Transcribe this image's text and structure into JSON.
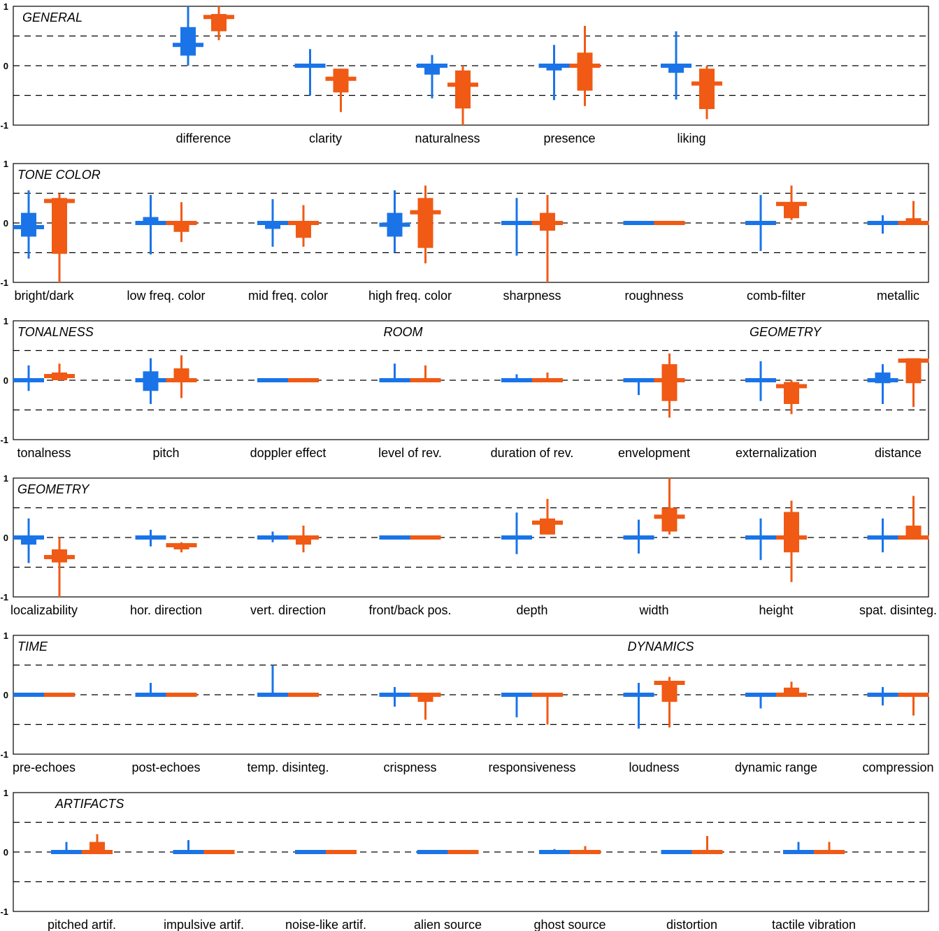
{
  "colors": {
    "series_a": "#1a74e8",
    "series_b": "#f05a14"
  },
  "chart_data": {
    "type": "box",
    "ylim": [
      -1,
      1
    ],
    "yticks": [
      -1,
      0,
      1
    ],
    "grid_dashed_at": [
      -0.5,
      0,
      0.5
    ],
    "panels": [
      {
        "groups": [
          {
            "label": "GENERAL",
            "start": 0
          }
        ],
        "categories": [
          {
            "label": "difference",
            "a": {
              "med": 0.35,
              "q1": 0.17,
              "q3": 0.65,
              "lo": 0.0,
              "hi": 1.0
            },
            "b": {
              "med": 0.82,
              "q1": 0.58,
              "q3": 0.87,
              "lo": 0.43,
              "hi": 1.0
            }
          },
          {
            "label": "clarity",
            "a": {
              "med": 0.0,
              "q1": 0.0,
              "q3": 0.0,
              "lo": -0.5,
              "hi": 0.28
            },
            "b": {
              "med": -0.22,
              "q1": -0.45,
              "q3": -0.05,
              "lo": -0.78,
              "hi": -0.05
            }
          },
          {
            "label": "naturalness",
            "a": {
              "med": 0.0,
              "q1": -0.15,
              "q3": 0.0,
              "lo": -0.55,
              "hi": 0.18
            },
            "b": {
              "med": -0.32,
              "q1": -0.72,
              "q3": -0.08,
              "lo": -1.0,
              "hi": 0.0
            }
          },
          {
            "label": "presence",
            "a": {
              "med": 0.0,
              "q1": -0.08,
              "q3": 0.0,
              "lo": -0.58,
              "hi": 0.35
            },
            "b": {
              "med": 0.0,
              "q1": -0.42,
              "q3": 0.22,
              "lo": -0.68,
              "hi": 0.67
            }
          },
          {
            "label": "liking",
            "a": {
              "med": 0.0,
              "q1": -0.12,
              "q3": 0.0,
              "lo": -0.57,
              "hi": 0.58
            },
            "b": {
              "med": -0.3,
              "q1": -0.73,
              "q3": -0.05,
              "lo": -0.9,
              "hi": 0.0
            }
          }
        ]
      },
      {
        "groups": [
          {
            "label": "TONE COLOR",
            "start": 0
          }
        ],
        "categories": [
          {
            "label": "bright/dark",
            "a": {
              "med": -0.07,
              "q1": -0.23,
              "q3": 0.17,
              "lo": -0.6,
              "hi": 0.55
            },
            "b": {
              "med": 0.37,
              "q1": -0.52,
              "q3": 0.42,
              "lo": -1.0,
              "hi": 0.5
            }
          },
          {
            "label": "low freq. color",
            "a": {
              "med": 0.0,
              "q1": 0.0,
              "q3": 0.1,
              "lo": -0.53,
              "hi": 0.47
            },
            "b": {
              "med": 0.0,
              "q1": -0.15,
              "q3": 0.0,
              "lo": -0.32,
              "hi": 0.35
            }
          },
          {
            "label": "mid freq. color",
            "a": {
              "med": 0.0,
              "q1": -0.1,
              "q3": 0.0,
              "lo": -0.4,
              "hi": 0.4
            },
            "b": {
              "med": 0.0,
              "q1": -0.25,
              "q3": 0.0,
              "lo": -0.4,
              "hi": 0.3
            }
          },
          {
            "label": "high freq. color",
            "a": {
              "med": -0.03,
              "q1": -0.23,
              "q3": 0.17,
              "lo": -0.5,
              "hi": 0.55
            },
            "b": {
              "med": 0.18,
              "q1": -0.42,
              "q3": 0.42,
              "lo": -0.68,
              "hi": 0.63
            }
          },
          {
            "label": "sharpness",
            "a": {
              "med": 0.0,
              "q1": 0.0,
              "q3": 0.0,
              "lo": -0.55,
              "hi": 0.42
            },
            "b": {
              "med": 0.0,
              "q1": -0.13,
              "q3": 0.17,
              "lo": -1.0,
              "hi": 0.47
            }
          },
          {
            "label": "roughness",
            "a": {
              "med": 0.0,
              "q1": 0.0,
              "q3": 0.0,
              "lo": 0.0,
              "hi": 0.0
            },
            "b": {
              "med": 0.0,
              "q1": 0.0,
              "q3": 0.0,
              "lo": 0.0,
              "hi": 0.0
            }
          },
          {
            "label": "comb-filter",
            "a": {
              "med": 0.0,
              "q1": 0.0,
              "q3": 0.0,
              "lo": -0.47,
              "hi": 0.47
            },
            "b": {
              "med": 0.32,
              "q1": 0.08,
              "q3": 0.35,
              "lo": 0.05,
              "hi": 0.63
            }
          },
          {
            "label": "metallic",
            "a": {
              "med": 0.0,
              "q1": 0.0,
              "q3": 0.0,
              "lo": -0.18,
              "hi": 0.13
            },
            "b": {
              "med": 0.0,
              "q1": 0.0,
              "q3": 0.08,
              "lo": 0.0,
              "hi": 0.37
            }
          }
        ]
      },
      {
        "groups": [
          {
            "label": "TONALNESS",
            "start": 0
          },
          {
            "label": "ROOM",
            "start": 3
          },
          {
            "label": "GEOMETRY",
            "start": 6
          }
        ],
        "categories": [
          {
            "label": "tonalness",
            "a": {
              "med": 0.0,
              "q1": 0.0,
              "q3": 0.0,
              "lo": -0.18,
              "hi": 0.25
            },
            "b": {
              "med": 0.07,
              "q1": 0.0,
              "q3": 0.13,
              "lo": 0.0,
              "hi": 0.28
            }
          },
          {
            "label": "pitch",
            "a": {
              "med": 0.0,
              "q1": -0.18,
              "q3": 0.15,
              "lo": -0.4,
              "hi": 0.37
            },
            "b": {
              "med": 0.0,
              "q1": 0.0,
              "q3": 0.2,
              "lo": -0.3,
              "hi": 0.42
            }
          },
          {
            "label": "doppler effect",
            "a": {
              "med": 0.0,
              "q1": 0.0,
              "q3": 0.0,
              "lo": 0.0,
              "hi": 0.0
            },
            "b": {
              "med": 0.0,
              "q1": 0.0,
              "q3": 0.0,
              "lo": 0.0,
              "hi": 0.0
            }
          },
          {
            "label": "level of rev.",
            "a": {
              "med": 0.0,
              "q1": 0.0,
              "q3": 0.0,
              "lo": 0.0,
              "hi": 0.28
            },
            "b": {
              "med": 0.0,
              "q1": 0.0,
              "q3": 0.0,
              "lo": 0.0,
              "hi": 0.25
            }
          },
          {
            "label": "duration of rev.",
            "a": {
              "med": 0.0,
              "q1": 0.0,
              "q3": 0.0,
              "lo": 0.0,
              "hi": 0.1
            },
            "b": {
              "med": 0.0,
              "q1": 0.0,
              "q3": 0.0,
              "lo": 0.0,
              "hi": 0.13
            }
          },
          {
            "label": "envelopment",
            "a": {
              "med": 0.0,
              "q1": 0.0,
              "q3": 0.0,
              "lo": -0.25,
              "hi": 0.0
            },
            "b": {
              "med": 0.0,
              "q1": -0.35,
              "q3": 0.27,
              "lo": -0.63,
              "hi": 0.45
            }
          },
          {
            "label": "externalization",
            "a": {
              "med": 0.0,
              "q1": 0.0,
              "q3": 0.0,
              "lo": -0.35,
              "hi": 0.32
            },
            "b": {
              "med": -0.1,
              "q1": -0.4,
              "q3": -0.03,
              "lo": -0.57,
              "hi": 0.0
            }
          },
          {
            "label": "distance",
            "a": {
              "med": 0.0,
              "q1": -0.05,
              "q3": 0.13,
              "lo": -0.4,
              "hi": 0.27
            },
            "b": {
              "med": 0.33,
              "q1": -0.05,
              "q3": 0.37,
              "lo": -0.45,
              "hi": 0.37
            }
          }
        ]
      },
      {
        "groups": [
          {
            "label": "GEOMETRY",
            "start": 0
          }
        ],
        "categories": [
          {
            "label": "localizability",
            "a": {
              "med": 0.0,
              "q1": -0.12,
              "q3": 0.0,
              "lo": -0.43,
              "hi": 0.32
            },
            "b": {
              "med": -0.33,
              "q1": -0.42,
              "q3": -0.2,
              "lo": -1.0,
              "hi": 0.0
            }
          },
          {
            "label": "hor. direction",
            "a": {
              "med": 0.0,
              "q1": 0.0,
              "q3": 0.0,
              "lo": -0.15,
              "hi": 0.13
            },
            "b": {
              "med": -0.13,
              "q1": -0.2,
              "q3": -0.1,
              "lo": -0.25,
              "hi": -0.08
            }
          },
          {
            "label": "vert. direction",
            "a": {
              "med": 0.0,
              "q1": 0.0,
              "q3": 0.0,
              "lo": -0.08,
              "hi": 0.1
            },
            "b": {
              "med": 0.0,
              "q1": -0.12,
              "q3": 0.0,
              "lo": -0.25,
              "hi": 0.2
            }
          },
          {
            "label": "front/back pos.",
            "a": {
              "med": 0.0,
              "q1": 0.0,
              "q3": 0.0,
              "lo": 0.0,
              "hi": 0.0
            },
            "b": {
              "med": 0.0,
              "q1": 0.0,
              "q3": 0.0,
              "lo": 0.0,
              "hi": 0.0
            }
          },
          {
            "label": "depth",
            "a": {
              "med": 0.0,
              "q1": 0.0,
              "q3": 0.0,
              "lo": -0.28,
              "hi": 0.42
            },
            "b": {
              "med": 0.25,
              "q1": 0.05,
              "q3": 0.32,
              "lo": 0.05,
              "hi": 0.65
            }
          },
          {
            "label": "width",
            "a": {
              "med": 0.0,
              "q1": 0.0,
              "q3": 0.0,
              "lo": -0.27,
              "hi": 0.3
            },
            "b": {
              "med": 0.35,
              "q1": 0.1,
              "q3": 0.5,
              "lo": 0.05,
              "hi": 1.0
            }
          },
          {
            "label": "height",
            "a": {
              "med": 0.0,
              "q1": 0.0,
              "q3": 0.0,
              "lo": -0.38,
              "hi": 0.32
            },
            "b": {
              "med": 0.0,
              "q1": -0.25,
              "q3": 0.43,
              "lo": -0.75,
              "hi": 0.62
            }
          },
          {
            "label": "spat. disinteg.",
            "a": {
              "med": 0.0,
              "q1": 0.0,
              "q3": 0.0,
              "lo": -0.25,
              "hi": 0.32
            },
            "b": {
              "med": 0.0,
              "q1": 0.0,
              "q3": 0.2,
              "lo": 0.0,
              "hi": 0.7
            }
          }
        ]
      },
      {
        "groups": [
          {
            "label": "TIME",
            "start": 0
          },
          {
            "label": "DYNAMICS",
            "start": 5
          }
        ],
        "categories": [
          {
            "label": "pre-echoes",
            "a": {
              "med": 0.0,
              "q1": 0.0,
              "q3": 0.0,
              "lo": 0.0,
              "hi": 0.0
            },
            "b": {
              "med": 0.0,
              "q1": 0.0,
              "q3": 0.0,
              "lo": 0.0,
              "hi": 0.0
            }
          },
          {
            "label": "post-echoes",
            "a": {
              "med": 0.0,
              "q1": 0.0,
              "q3": 0.0,
              "lo": 0.0,
              "hi": 0.2
            },
            "b": {
              "med": 0.0,
              "q1": 0.0,
              "q3": 0.0,
              "lo": 0.0,
              "hi": 0.0
            }
          },
          {
            "label": "temp. disinteg.",
            "a": {
              "med": 0.0,
              "q1": 0.0,
              "q3": 0.0,
              "lo": 0.0,
              "hi": 0.5
            },
            "b": {
              "med": 0.0,
              "q1": 0.0,
              "q3": 0.0,
              "lo": 0.0,
              "hi": 0.0
            }
          },
          {
            "label": "crispness",
            "a": {
              "med": 0.0,
              "q1": 0.0,
              "q3": 0.0,
              "lo": -0.2,
              "hi": 0.13
            },
            "b": {
              "med": 0.0,
              "q1": -0.12,
              "q3": 0.0,
              "lo": -0.42,
              "hi": 0.0
            }
          },
          {
            "label": "responsiveness",
            "a": {
              "med": 0.0,
              "q1": 0.0,
              "q3": 0.0,
              "lo": -0.38,
              "hi": 0.0
            },
            "b": {
              "med": 0.0,
              "q1": 0.0,
              "q3": 0.0,
              "lo": -0.5,
              "hi": 0.0
            }
          },
          {
            "label": "loudness",
            "a": {
              "med": 0.0,
              "q1": 0.0,
              "q3": 0.0,
              "lo": -0.57,
              "hi": 0.2
            },
            "b": {
              "med": 0.2,
              "q1": -0.12,
              "q3": 0.22,
              "lo": -0.55,
              "hi": 0.3
            }
          },
          {
            "label": "dynamic range",
            "a": {
              "med": 0.0,
              "q1": 0.0,
              "q3": 0.0,
              "lo": -0.23,
              "hi": 0.0
            },
            "b": {
              "med": 0.0,
              "q1": 0.0,
              "q3": 0.12,
              "lo": 0.0,
              "hi": 0.22
            }
          },
          {
            "label": "compression",
            "a": {
              "med": 0.0,
              "q1": 0.0,
              "q3": 0.0,
              "lo": -0.18,
              "hi": 0.13
            },
            "b": {
              "med": 0.0,
              "q1": 0.0,
              "q3": 0.0,
              "lo": -0.35,
              "hi": 0.0
            }
          }
        ]
      },
      {
        "groups": [
          {
            "label": "ARTIFACTS",
            "start": 0
          }
        ],
        "categories": [
          {
            "label": "pitched artif.",
            "a": {
              "med": 0.0,
              "q1": 0.0,
              "q3": 0.0,
              "lo": 0.0,
              "hi": 0.17
            },
            "b": {
              "med": 0.0,
              "q1": 0.0,
              "q3": 0.17,
              "lo": 0.0,
              "hi": 0.3
            }
          },
          {
            "label": "impulsive artif.",
            "a": {
              "med": 0.0,
              "q1": 0.0,
              "q3": 0.0,
              "lo": 0.0,
              "hi": 0.2
            },
            "b": {
              "med": 0.0,
              "q1": 0.0,
              "q3": 0.0,
              "lo": 0.0,
              "hi": 0.0
            }
          },
          {
            "label": "noise-like artif.",
            "a": {
              "med": 0.0,
              "q1": 0.0,
              "q3": 0.0,
              "lo": 0.0,
              "hi": 0.0
            },
            "b": {
              "med": 0.0,
              "q1": 0.0,
              "q3": 0.0,
              "lo": 0.0,
              "hi": 0.0
            }
          },
          {
            "label": "alien source",
            "a": {
              "med": 0.0,
              "q1": 0.0,
              "q3": 0.0,
              "lo": 0.0,
              "hi": 0.0
            },
            "b": {
              "med": 0.0,
              "q1": 0.0,
              "q3": 0.0,
              "lo": 0.0,
              "hi": 0.0
            }
          },
          {
            "label": "ghost source",
            "a": {
              "med": 0.0,
              "q1": 0.0,
              "q3": 0.0,
              "lo": 0.0,
              "hi": 0.05
            },
            "b": {
              "med": 0.0,
              "q1": 0.0,
              "q3": 0.0,
              "lo": 0.0,
              "hi": 0.1
            }
          },
          {
            "label": "distortion",
            "a": {
              "med": 0.0,
              "q1": 0.0,
              "q3": 0.0,
              "lo": 0.0,
              "hi": 0.0
            },
            "b": {
              "med": 0.0,
              "q1": 0.0,
              "q3": 0.0,
              "lo": 0.0,
              "hi": 0.27
            }
          },
          {
            "label": "tactile vibration",
            "a": {
              "med": 0.0,
              "q1": 0.0,
              "q3": 0.0,
              "lo": 0.0,
              "hi": 0.17
            },
            "b": {
              "med": 0.0,
              "q1": 0.0,
              "q3": 0.0,
              "lo": 0.0,
              "hi": 0.17
            }
          }
        ]
      }
    ]
  }
}
